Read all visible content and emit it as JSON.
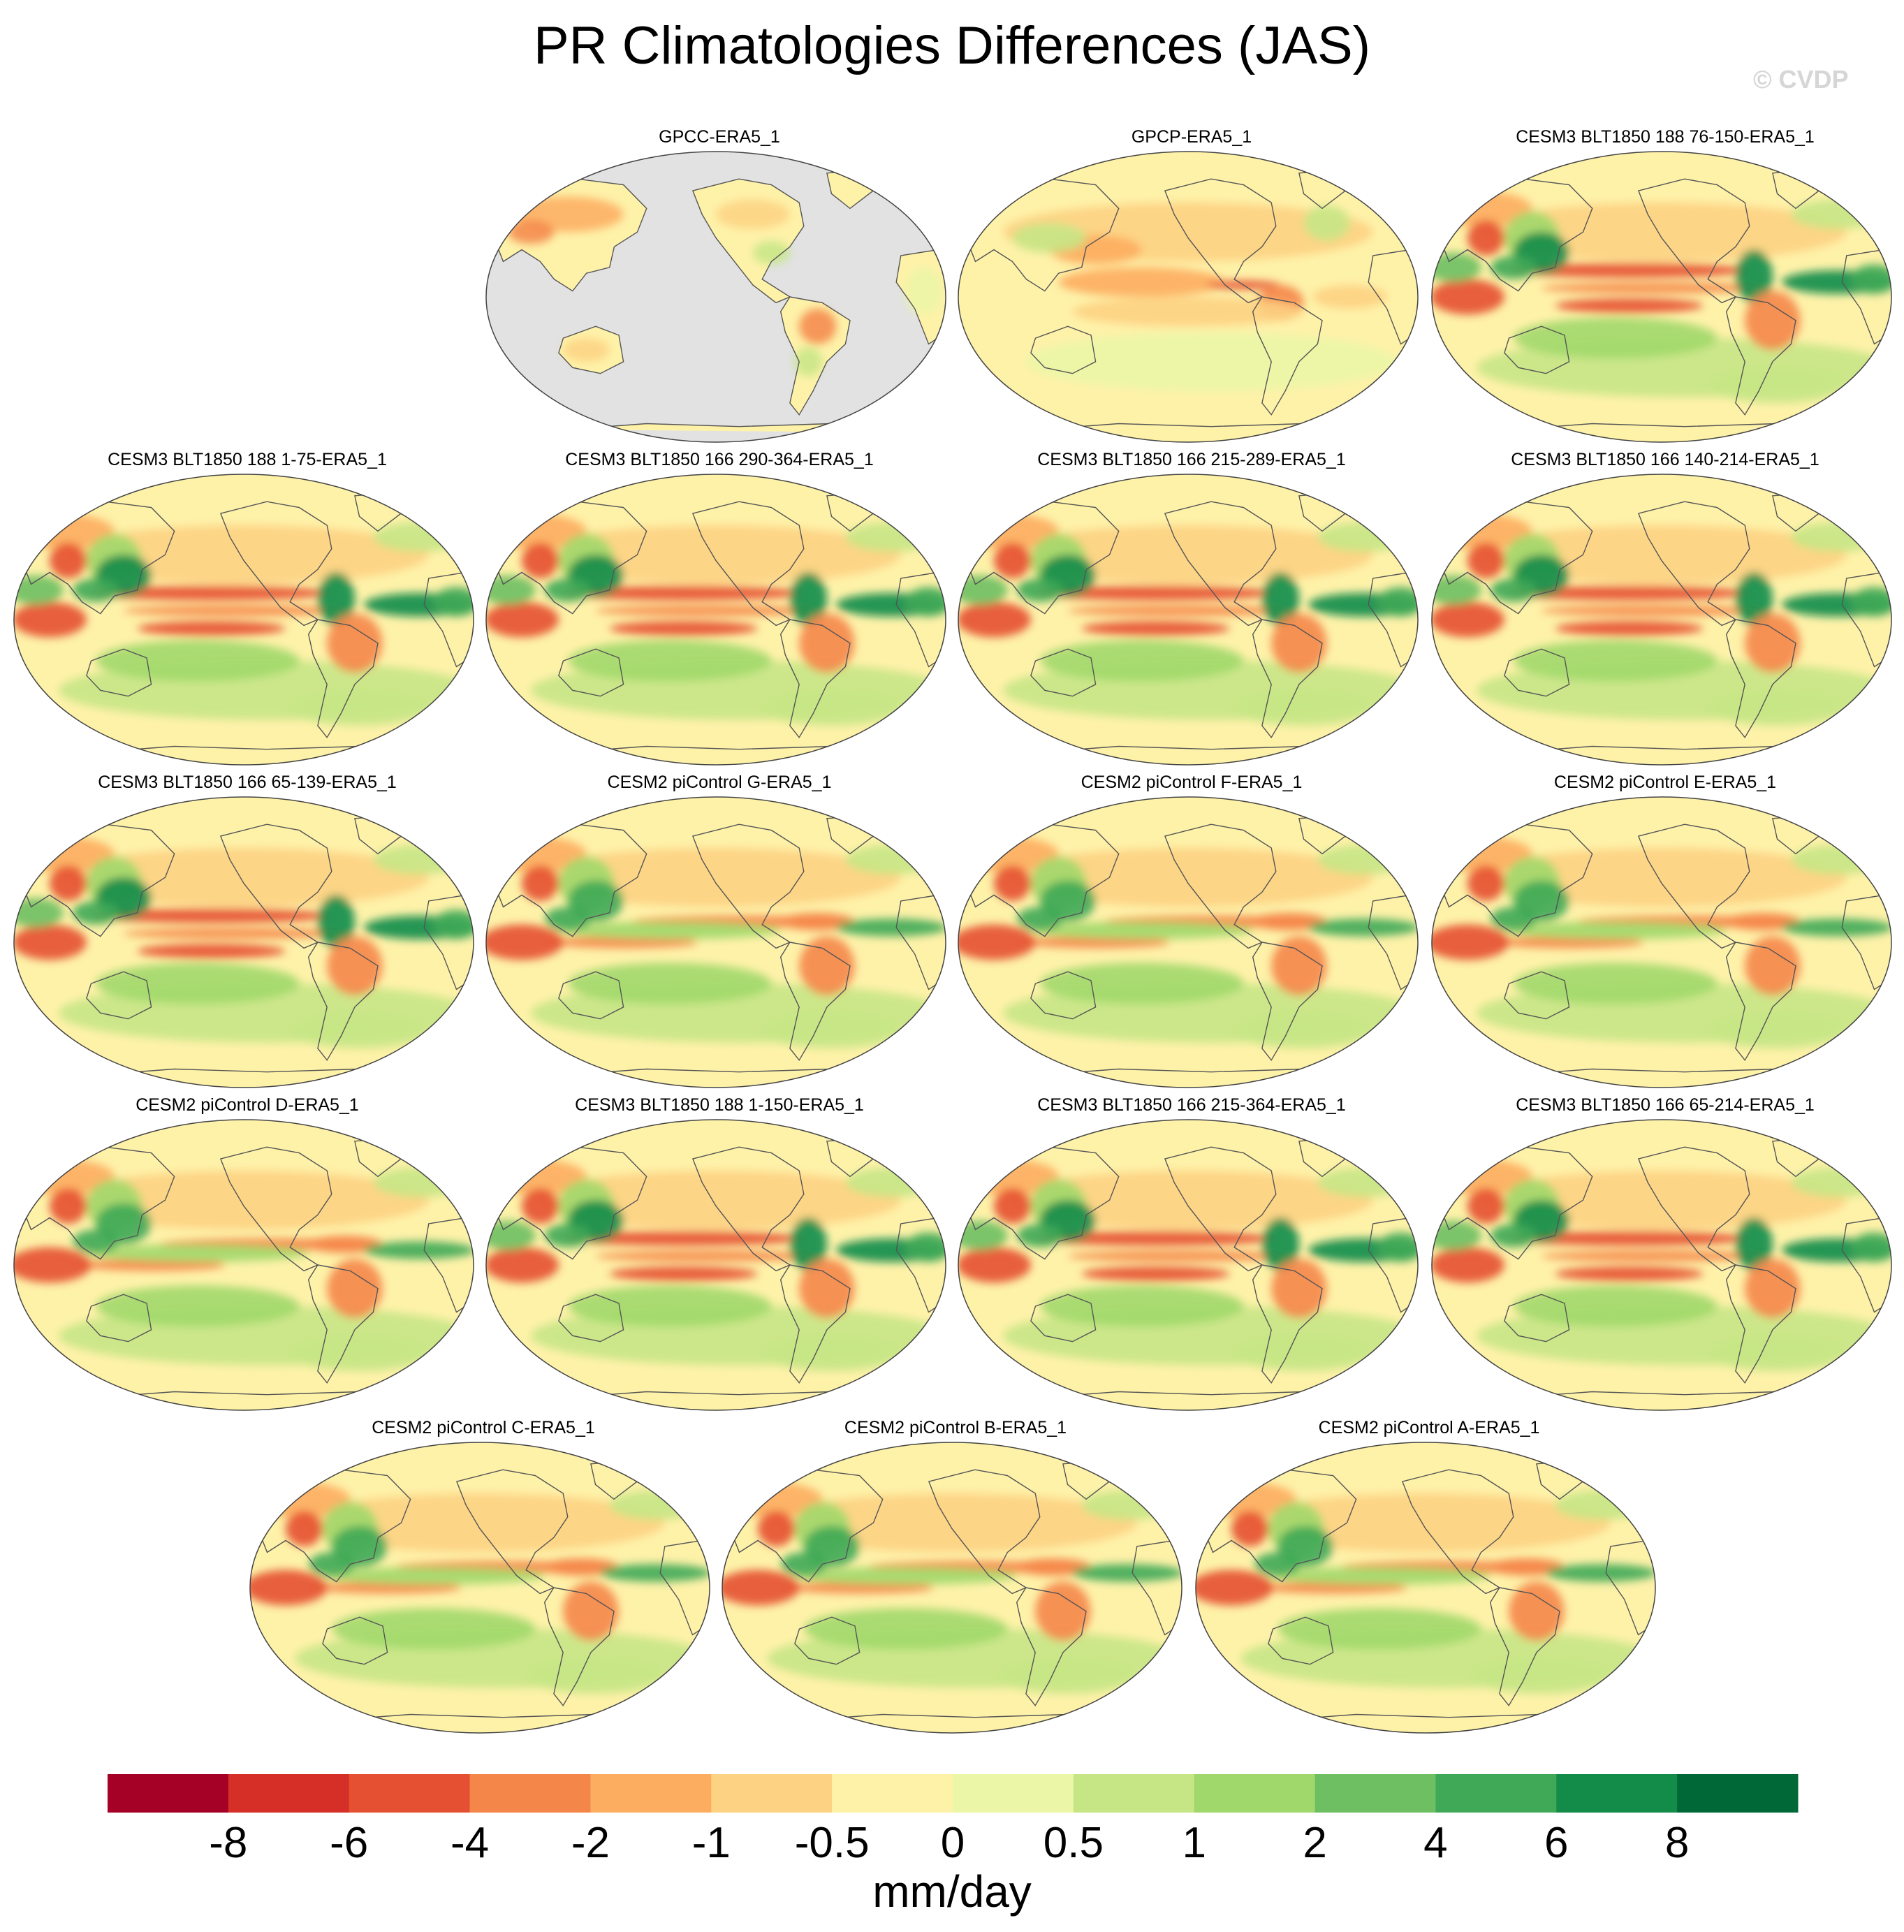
{
  "figure": {
    "title": "PR Climatologies Differences (JAS)",
    "watermark": "© CVDP"
  },
  "panels": [
    {
      "title": "GPCC-ERA5_1",
      "variant": "land-only"
    },
    {
      "title": "GPCP-ERA5_1",
      "variant": "obs"
    },
    {
      "title": "CESM3 BLT1850 188 76-150-ERA5_1",
      "variant": "cesm3"
    },
    {
      "title": "CESM3 BLT1850 188 1-75-ERA5_1",
      "variant": "cesm3"
    },
    {
      "title": "CESM3 BLT1850 166 290-364-ERA5_1",
      "variant": "cesm3"
    },
    {
      "title": "CESM3 BLT1850 166 215-289-ERA5_1",
      "variant": "cesm3"
    },
    {
      "title": "CESM3 BLT1850 166 140-214-ERA5_1",
      "variant": "cesm3"
    },
    {
      "title": "CESM3 BLT1850 166 65-139-ERA5_1",
      "variant": "cesm3"
    },
    {
      "title": "CESM2 piControl G-ERA5_1",
      "variant": "cesm2"
    },
    {
      "title": "CESM2 piControl F-ERA5_1",
      "variant": "cesm2"
    },
    {
      "title": "CESM2 piControl E-ERA5_1",
      "variant": "cesm2"
    },
    {
      "title": "CESM2 piControl D-ERA5_1",
      "variant": "cesm2"
    },
    {
      "title": "CESM3 BLT1850 188 1-150-ERA5_1",
      "variant": "cesm3"
    },
    {
      "title": "CESM3 BLT1850 166 215-364-ERA5_1",
      "variant": "cesm3"
    },
    {
      "title": "CESM3 BLT1850 166 65-214-ERA5_1",
      "variant": "cesm3"
    },
    {
      "title": "CESM2 piControl C-ERA5_1",
      "variant": "cesm2"
    },
    {
      "title": "CESM2 piControl B-ERA5_1",
      "variant": "cesm2"
    },
    {
      "title": "CESM2 piControl A-ERA5_1",
      "variant": "cesm2"
    }
  ],
  "colorbar": {
    "units": "mm/day",
    "tick_labels": [
      "-8",
      "-6",
      "-4",
      "-2",
      "-1",
      "-0.5",
      "0",
      "0.5",
      "1",
      "2",
      "4",
      "6",
      "8"
    ],
    "colors": [
      "#a50026",
      "#d62f27",
      "#e65032",
      "#f5864a",
      "#fdad60",
      "#fdd283",
      "#fef2a9",
      "#ebf6a6",
      "#c6e686",
      "#a1d86b",
      "#6dbf62",
      "#3fa957",
      "#138c4a",
      "#006837"
    ]
  },
  "map_colors": {
    "ocean_missing": "#e2e2e2",
    "coastline": "#555555",
    "border": "#444444"
  }
}
